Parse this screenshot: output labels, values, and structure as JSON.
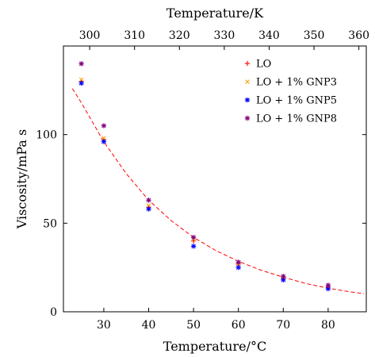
{
  "chart_data": {
    "type": "scatter",
    "xlabel": "Temperature/°C",
    "ylabel": "Viscosity/mPa s",
    "x2label": "Temperature/K",
    "xlim": [
      21,
      88.5
    ],
    "ylim": [
      0,
      150
    ],
    "x2lim": [
      294.15,
      361.65
    ],
    "xticks": [
      "30",
      "40",
      "50",
      "60",
      "70",
      "80"
    ],
    "yticks": [
      "0",
      "50",
      "100"
    ],
    "x2ticks": [
      "300",
      "310",
      "320",
      "330",
      "340",
      "350",
      "360"
    ],
    "legend_position": "top-right",
    "series": [
      {
        "name": "LO",
        "marker": "plus",
        "color": "#ff0000",
        "x": [
          25,
          30,
          40,
          50,
          60,
          70,
          80
        ],
        "y": [
          130,
          97,
          59,
          40,
          27,
          19,
          14
        ]
      },
      {
        "name": "LO + 1% GNP3",
        "marker": "x",
        "color": "#ff9900",
        "x": [
          25,
          30,
          40,
          50,
          60,
          70,
          80
        ],
        "y": [
          131,
          98,
          60,
          41,
          27,
          19,
          14
        ]
      },
      {
        "name": "LO + 1% GNP5",
        "marker": "asterisk",
        "color": "#0000ff",
        "x": [
          25,
          30,
          40,
          50,
          60,
          70,
          80
        ],
        "y": [
          129,
          96,
          58,
          37,
          25,
          18,
          13
        ]
      },
      {
        "name": "LO + 1% GNP8",
        "marker": "asterisk",
        "color": "#800080",
        "x": [
          25,
          30,
          40,
          50,
          60,
          70,
          80
        ],
        "y": [
          140,
          105,
          63,
          42,
          28,
          20,
          15
        ]
      }
    ],
    "fit": {
      "style": "dashed",
      "color": "#ff0000",
      "x": [
        23,
        25,
        30,
        35,
        40,
        45,
        50,
        55,
        60,
        65,
        70,
        75,
        80,
        85,
        88
      ],
      "y": [
        126,
        118,
        96,
        78,
        63,
        51.5,
        42,
        34.5,
        28.5,
        23.5,
        19.5,
        16,
        13.3,
        11.2,
        10.2
      ]
    }
  }
}
